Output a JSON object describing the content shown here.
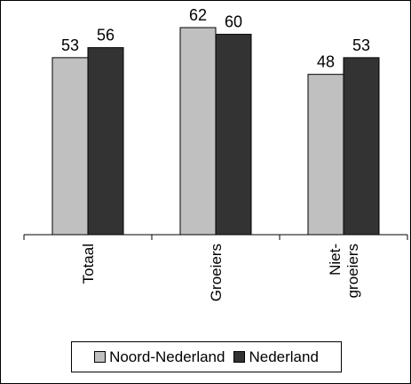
{
  "chart_data": {
    "type": "bar",
    "categories": [
      "Totaal",
      "Groeiers",
      "Niet-groeiers"
    ],
    "category_lines": [
      [
        "Totaal"
      ],
      [
        "Groeiers"
      ],
      [
        "Niet-",
        "groeiers"
      ]
    ],
    "series": [
      {
        "name": "Noord-Nederland",
        "values": [
          53,
          62,
          48
        ],
        "color": "#c0c0c0"
      },
      {
        "name": "Nederland",
        "values": [
          56,
          60,
          53
        ],
        "color": "#333333"
      }
    ],
    "ylim": [
      0,
      70
    ],
    "grid": false,
    "legend_position": "bottom",
    "title": "",
    "xlabel": "",
    "ylabel": ""
  }
}
